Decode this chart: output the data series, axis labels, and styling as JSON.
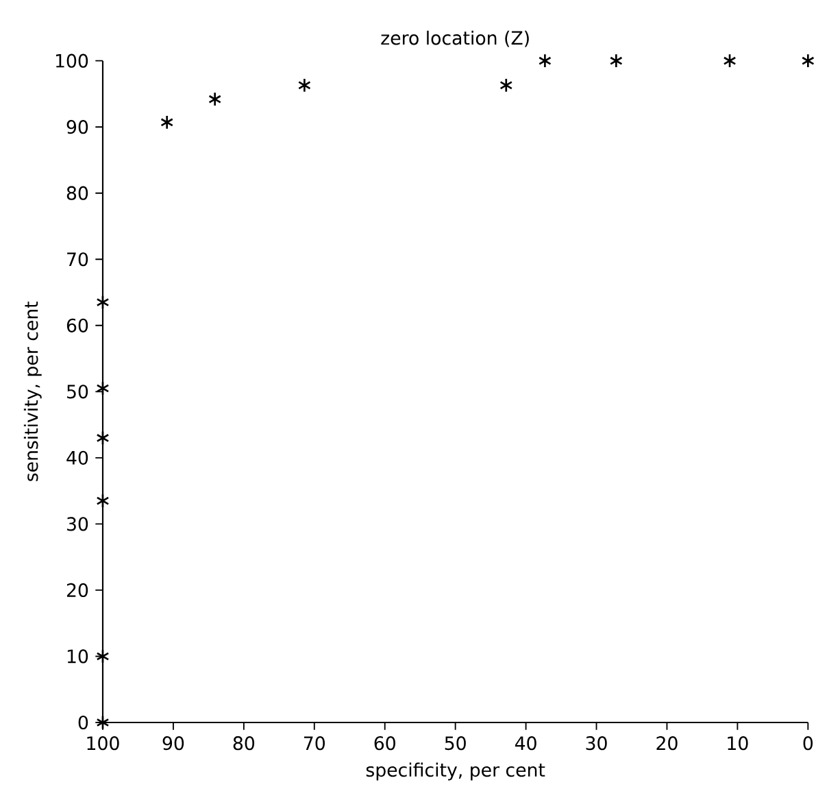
{
  "chart_data": {
    "type": "scatter",
    "title": "zero location (Z)",
    "xlabel": "specificity, per cent",
    "ylabel": "sensitivity, per cent",
    "x": [
      100,
      100,
      100,
      100,
      100,
      100,
      90.9,
      84.1,
      71.4,
      42.8,
      37.3,
      27.2,
      11.1,
      0
    ],
    "values": [
      0,
      10,
      33.5,
      43,
      50.5,
      63.5,
      90.7,
      94.2,
      96.3,
      96.3,
      100,
      100,
      100,
      100
    ],
    "color": "#000000",
    "marker": "cross",
    "xlim": [
      100,
      0
    ],
    "ylim": [
      0,
      100
    ],
    "xticks": [
      100,
      90,
      80,
      70,
      60,
      50,
      40,
      30,
      20,
      10,
      0
    ],
    "yticks": [
      0,
      10,
      20,
      30,
      40,
      50,
      60,
      70,
      80,
      90,
      100
    ],
    "grid": false
  }
}
